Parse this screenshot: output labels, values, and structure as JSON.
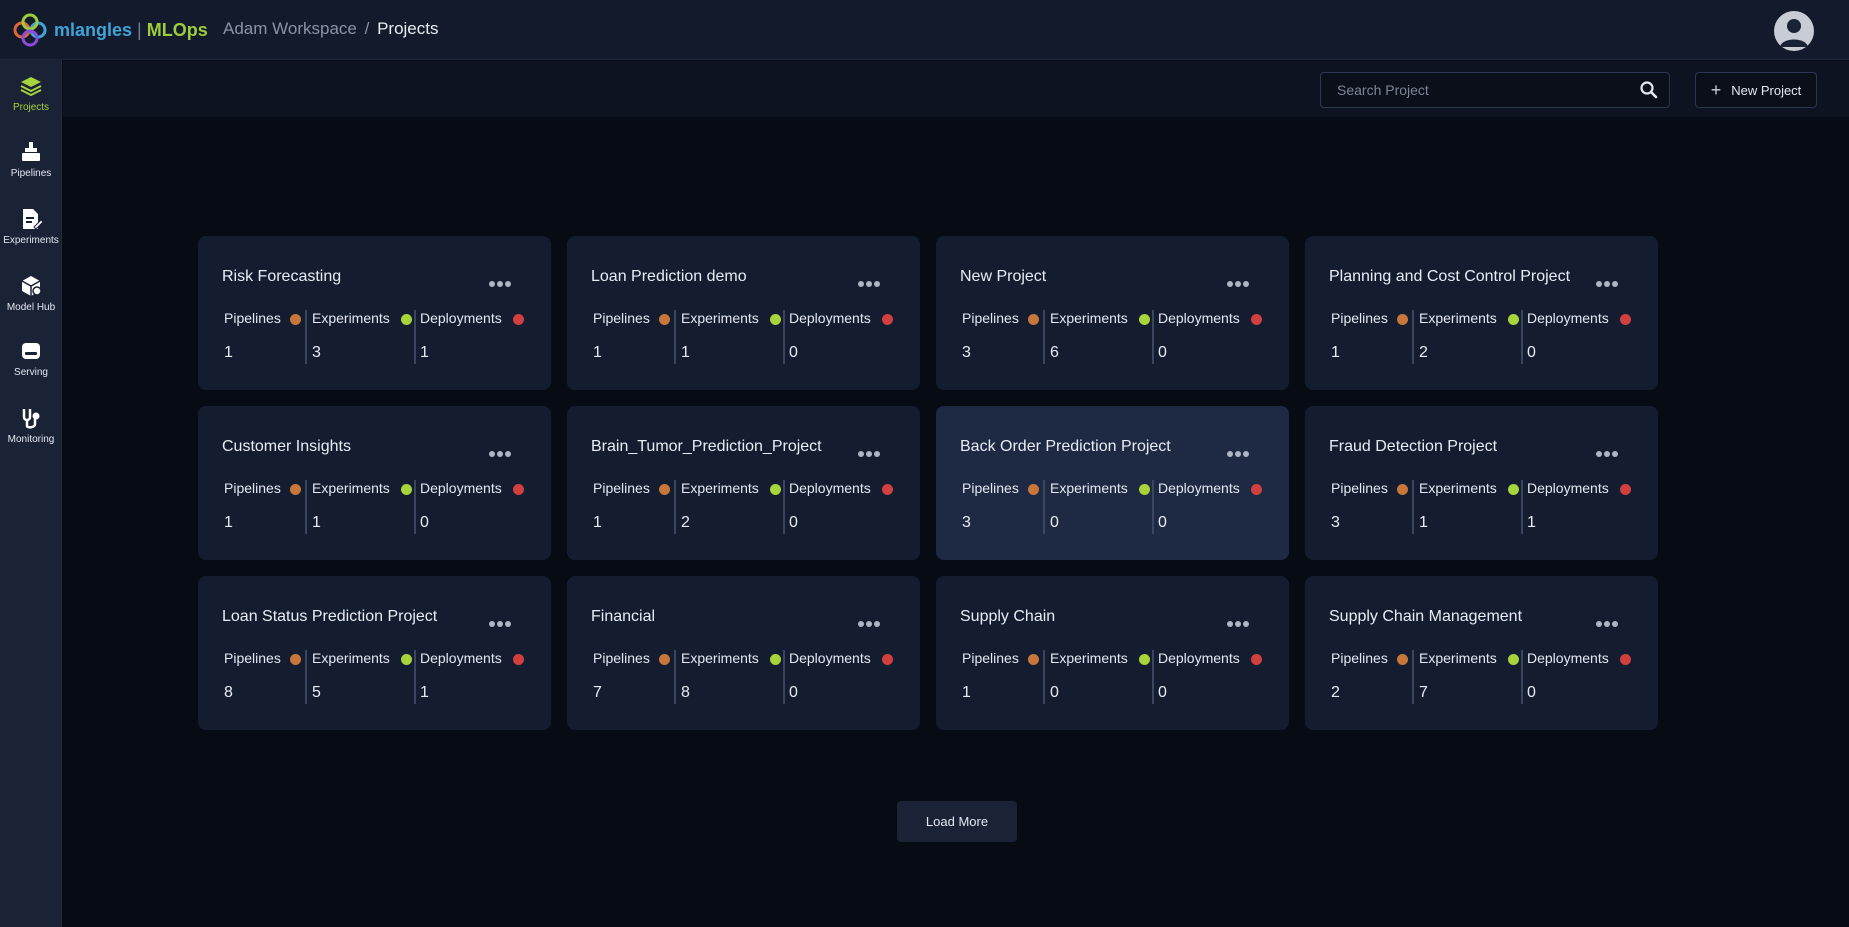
{
  "brand": {
    "name_ml": "mlangles",
    "separator": "|",
    "name_ops": "MLOps"
  },
  "breadcrumb": {
    "workspace": "Adam Workspace",
    "separator": "/",
    "current": "Projects"
  },
  "sidebar": {
    "items": [
      {
        "label": "Projects",
        "icon": "layers-icon",
        "active": true
      },
      {
        "label": "Pipelines",
        "icon": "pipeline-icon",
        "active": false
      },
      {
        "label": "Experiments",
        "icon": "experiment-icon",
        "active": false
      },
      {
        "label": "Model Hub",
        "icon": "model-hub-icon",
        "active": false
      },
      {
        "label": "Serving",
        "icon": "serving-icon",
        "active": false
      },
      {
        "label": "Monitoring",
        "icon": "monitoring-icon",
        "active": false
      }
    ]
  },
  "toolbar": {
    "search_placeholder": "Search Project",
    "search_value": "",
    "new_project_label": "New Project"
  },
  "stat_labels": {
    "pipelines": "Pipelines",
    "experiments": "Experiments",
    "deployments": "Deployments"
  },
  "colors": {
    "pipelines_dot": "#c8773a",
    "experiments_dot": "#a6d43a",
    "deployments_dot": "#d23f3f",
    "accent": "#a6d43a"
  },
  "projects": [
    {
      "title": "Risk Forecasting",
      "pipelines": "1",
      "experiments": "3",
      "deployments": "1"
    },
    {
      "title": "Loan Prediction demo",
      "pipelines": "1",
      "experiments": "1",
      "deployments": "0"
    },
    {
      "title": "New Project",
      "pipelines": "3",
      "experiments": "6",
      "deployments": "0"
    },
    {
      "title": "Planning and Cost Control Project",
      "pipelines": "1",
      "experiments": "2",
      "deployments": "0"
    },
    {
      "title": "Customer Insights",
      "pipelines": "1",
      "experiments": "1",
      "deployments": "0"
    },
    {
      "title": "Brain_Tumor_Prediction_Project",
      "pipelines": "1",
      "experiments": "2",
      "deployments": "0"
    },
    {
      "title": "Back Order Prediction Project",
      "pipelines": "3",
      "experiments": "0",
      "deployments": "0",
      "highlighted": true
    },
    {
      "title": "Fraud Detection Project",
      "pipelines": "3",
      "experiments": "1",
      "deployments": "1"
    },
    {
      "title": "Loan Status Prediction Project",
      "pipelines": "8",
      "experiments": "5",
      "deployments": "1"
    },
    {
      "title": "Financial",
      "pipelines": "7",
      "experiments": "8",
      "deployments": "0"
    },
    {
      "title": "Supply Chain",
      "pipelines": "1",
      "experiments": "0",
      "deployments": "0"
    },
    {
      "title": "Supply Chain Management",
      "pipelines": "2",
      "experiments": "7",
      "deployments": "0"
    }
  ],
  "load_more_label": "Load More"
}
